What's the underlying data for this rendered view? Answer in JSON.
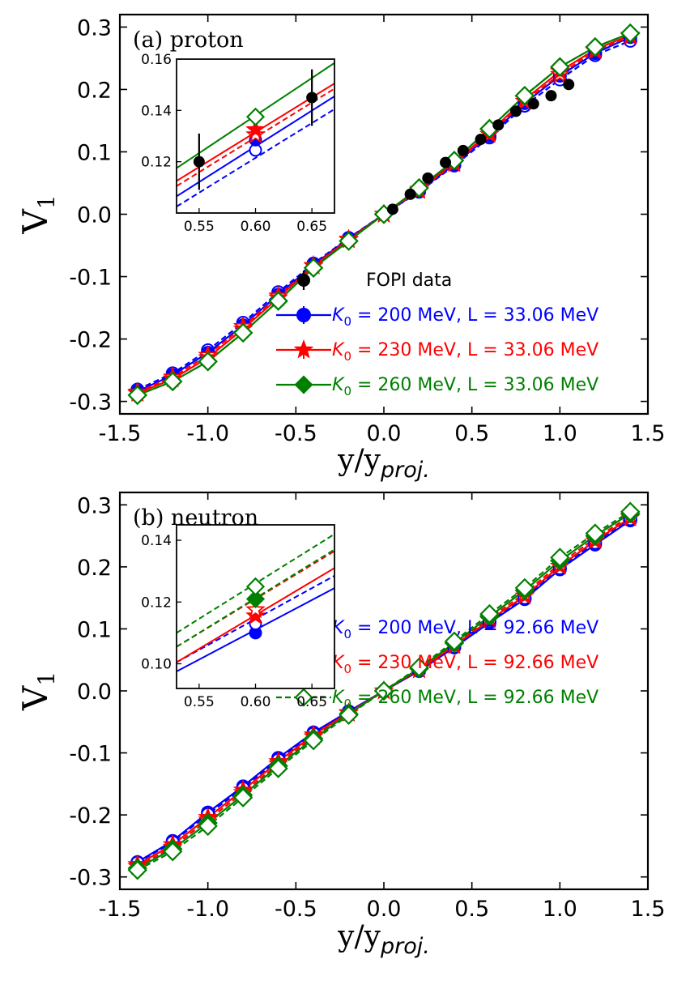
{
  "chart_data": [
    {
      "type": "line",
      "panel_label": "(a) proton",
      "xlabel": "y/y",
      "xlabel_sub": "proj.",
      "ylabel": "V",
      "ylabel_sub": "1",
      "xlim": [
        -1.5,
        1.5
      ],
      "ylim": [
        -0.32,
        0.32
      ],
      "xticks": [
        -1.5,
        -1.0,
        -0.5,
        0.0,
        0.5,
        1.0,
        1.5
      ],
      "xtick_labels": [
        "-1.5",
        "-1.0",
        "-0.5",
        "0.0",
        "0.5",
        "1.0",
        "1.5"
      ],
      "yticks": [
        -0.3,
        -0.2,
        -0.1,
        0.0,
        0.1,
        0.2,
        0.3
      ],
      "ytick_labels": [
        "-0.3",
        "-0.2",
        "-0.1",
        "0.0",
        "0.1",
        "0.2",
        "0.3"
      ],
      "x": [
        -1.4,
        -1.2,
        -1.0,
        -0.8,
        -0.6,
        -0.4,
        -0.2,
        0.0,
        0.2,
        0.4,
        0.6,
        0.8,
        1.0,
        1.2,
        1.4
      ],
      "series": [
        {
          "name": "K0=200 MeV, L=33.06 MeV (dashed)",
          "color": "#0000ff",
          "dash": true,
          "marker": "circle",
          "filled": false,
          "in_legend": false,
          "values": [
            -0.281,
            -0.255,
            -0.218,
            -0.174,
            -0.125,
            -0.079,
            -0.038,
            0.0,
            0.036,
            0.078,
            0.123,
            0.174,
            0.216,
            0.255,
            0.278
          ]
        },
        {
          "name": "K0=200 MeV, L=33.06 MeV",
          "color": "#0000ff",
          "dash": false,
          "marker": "circle",
          "filled": true,
          "in_legend": true,
          "values": [
            -0.284,
            -0.258,
            -0.222,
            -0.178,
            -0.129,
            -0.081,
            -0.039,
            0.0,
            0.037,
            0.08,
            0.126,
            0.178,
            0.222,
            0.258,
            0.284
          ]
        },
        {
          "name": "K0=230 MeV, L=33.06 MeV (dashed)",
          "color": "#ff0000",
          "dash": true,
          "marker": "star",
          "filled": false,
          "in_legend": false,
          "values": [
            -0.285,
            -0.261,
            -0.226,
            -0.18,
            -0.131,
            -0.082,
            -0.04,
            0.0,
            0.038,
            0.081,
            0.128,
            0.181,
            0.224,
            0.262,
            0.285
          ]
        },
        {
          "name": "K0=230 MeV, L=33.06 MeV",
          "color": "#ff0000",
          "dash": false,
          "marker": "star",
          "filled": true,
          "in_legend": true,
          "values": [
            -0.287,
            -0.264,
            -0.23,
            -0.184,
            -0.134,
            -0.083,
            -0.041,
            0.0,
            0.04,
            0.083,
            0.131,
            0.184,
            0.229,
            0.264,
            0.287
          ]
        },
        {
          "name": "K0=260 MeV, L=33.06 MeV",
          "color": "#008000",
          "dash": false,
          "marker": "diamond",
          "filled": true,
          "in_legend": true,
          "values": [
            -0.29,
            -0.268,
            -0.236,
            -0.19,
            -0.139,
            -0.086,
            -0.043,
            0.0,
            0.042,
            0.086,
            0.137,
            0.19,
            0.236,
            0.268,
            0.29
          ]
        },
        {
          "name": "K0=260 MeV, L=33.06 MeV (dashed)",
          "color": "#008000",
          "dash": true,
          "marker": "diamond",
          "filled": false,
          "in_legend": false,
          "values": [
            -0.29,
            -0.268,
            -0.236,
            -0.19,
            -0.139,
            -0.086,
            -0.043,
            0.0,
            0.042,
            0.086,
            0.137,
            0.19,
            0.236,
            0.268,
            0.29
          ]
        }
      ],
      "data_points": {
        "name": "FOPI data",
        "color": "#000000",
        "x": [
          0.05,
          0.15,
          0.25,
          0.35,
          0.45,
          0.55,
          0.65,
          0.75,
          0.85,
          0.95,
          1.05
        ],
        "y": [
          0.008,
          0.032,
          0.058,
          0.083,
          0.102,
          0.12,
          0.143,
          0.165,
          0.177,
          0.19,
          0.208
        ]
      },
      "legend": {
        "placement": "lower-right",
        "entries": [
          {
            "label": "FOPI data",
            "color": "#000000",
            "marker": "dot"
          },
          {
            "k0": "200 MeV",
            "L": "33.06 MeV",
            "color": "#0000ff",
            "marker": "circle",
            "filled": true,
            "dash": false
          },
          {
            "k0": "230 MeV",
            "L": "33.06 MeV",
            "color": "#ff0000",
            "marker": "star",
            "filled": true,
            "dash": false
          },
          {
            "k0": "260 MeV",
            "L": "33.06 MeV",
            "color": "#008000",
            "marker": "diamond",
            "filled": true,
            "dash": false
          }
        ]
      },
      "inset": {
        "placement": "upper-left",
        "xlim": [
          0.53,
          0.67
        ],
        "ylim": [
          0.1,
          0.16
        ],
        "xticks": [
          0.55,
          0.6,
          0.65
        ],
        "xtick_labels": [
          "0.55",
          "0.60",
          "0.65"
        ],
        "yticks": [
          0.12,
          0.14,
          0.16
        ],
        "ytick_labels": [
          "0.12",
          "0.14",
          "0.16"
        ],
        "lines": [
          {
            "color": "#0000ff",
            "dash": true,
            "x": [
              0.53,
              0.67
            ],
            "y": [
              0.1025,
              0.1405
            ]
          },
          {
            "color": "#0000ff",
            "dash": false,
            "x": [
              0.53,
              0.67
            ],
            "y": [
              0.1065,
              0.1455
            ]
          },
          {
            "color": "#ff0000",
            "dash": true,
            "x": [
              0.53,
              0.67
            ],
            "y": [
              0.1105,
              0.1485
            ]
          },
          {
            "color": "#ff0000",
            "dash": false,
            "x": [
              0.53,
              0.67
            ],
            "y": [
              0.1125,
              0.1505
            ]
          },
          {
            "color": "#008000",
            "dash": false,
            "x": [
              0.53,
              0.67
            ],
            "y": [
              0.1175,
              0.1585
            ]
          }
        ],
        "markers": [
          {
            "x": 0.6,
            "y": 0.1245,
            "color": "#0000ff",
            "marker": "circle",
            "filled": false
          },
          {
            "x": 0.6,
            "y": 0.1285,
            "color": "#0000ff",
            "marker": "circle",
            "filled": true
          },
          {
            "x": 0.6,
            "y": 0.1305,
            "color": "#ff0000",
            "marker": "star",
            "filled": false
          },
          {
            "x": 0.6,
            "y": 0.1325,
            "color": "#ff0000",
            "marker": "star",
            "filled": true
          },
          {
            "x": 0.6,
            "y": 0.1375,
            "color": "#008000",
            "marker": "diamond",
            "filled": false
          }
        ],
        "data": {
          "x": [
            0.55,
            0.65
          ],
          "y": [
            0.12,
            0.145
          ],
          "err": [
            0.011,
            0.011
          ]
        }
      }
    },
    {
      "type": "line",
      "panel_label": "(b) neutron",
      "xlabel": "y/y",
      "xlabel_sub": "proj.",
      "ylabel": "V",
      "ylabel_sub": "1",
      "xlim": [
        -1.5,
        1.5
      ],
      "ylim": [
        -0.32,
        0.32
      ],
      "xticks": [
        -1.5,
        -1.0,
        -0.5,
        0.0,
        0.5,
        1.0,
        1.5
      ],
      "xtick_labels": [
        "-1.5",
        "-1.0",
        "-0.5",
        "0.0",
        "0.5",
        "1.0",
        "1.5"
      ],
      "yticks": [
        -0.3,
        -0.2,
        -0.1,
        0.0,
        0.1,
        0.2,
        0.3
      ],
      "ytick_labels": [
        "-0.3",
        "-0.2",
        "-0.1",
        "0.0",
        "0.1",
        "0.2",
        "0.3"
      ],
      "x": [
        -1.4,
        -1.2,
        -1.0,
        -0.8,
        -0.6,
        -0.4,
        -0.2,
        0.0,
        0.2,
        0.4,
        0.6,
        0.8,
        1.0,
        1.2,
        1.4
      ],
      "series": [
        {
          "name": "K0=200 MeV, L=33.06 MeV",
          "color": "#0000ff",
          "dash": false,
          "marker": "circle",
          "filled": true,
          "in_legend": false,
          "values": [
            -0.276,
            -0.242,
            -0.196,
            -0.154,
            -0.108,
            -0.067,
            -0.033,
            0.0,
            0.032,
            0.07,
            0.11,
            0.148,
            0.196,
            0.236,
            0.275
          ]
        },
        {
          "name": "K0=200 MeV, L=92.66 MeV",
          "color": "#0000ff",
          "dash": true,
          "marker": "circle",
          "filled": false,
          "in_legend": true,
          "values": [
            -0.277,
            -0.244,
            -0.199,
            -0.157,
            -0.111,
            -0.069,
            -0.034,
            0.0,
            0.033,
            0.071,
            0.112,
            0.15,
            0.198,
            0.239,
            0.277
          ]
        },
        {
          "name": "K0=230 MeV, L=33.06 MeV",
          "color": "#ff0000",
          "dash": false,
          "marker": "star",
          "filled": true,
          "in_legend": false,
          "values": [
            -0.28,
            -0.248,
            -0.204,
            -0.16,
            -0.114,
            -0.071,
            -0.035,
            0.0,
            0.034,
            0.073,
            0.114,
            0.153,
            0.201,
            0.242,
            0.279
          ]
        },
        {
          "name": "K0=230 MeV, L=92.66 MeV",
          "color": "#ff0000",
          "dash": true,
          "marker": "star",
          "filled": false,
          "in_legend": true,
          "values": [
            -0.283,
            -0.252,
            -0.208,
            -0.164,
            -0.118,
            -0.074,
            -0.036,
            0.0,
            0.035,
            0.075,
            0.117,
            0.157,
            0.205,
            0.246,
            0.282
          ]
        },
        {
          "name": "K0=260 MeV, L=33.06 MeV",
          "color": "#008000",
          "dash": false,
          "marker": "diamond",
          "filled": true,
          "in_legend": false,
          "values": [
            -0.286,
            -0.255,
            -0.213,
            -0.168,
            -0.121,
            -0.077,
            -0.037,
            0.0,
            0.036,
            0.077,
            0.12,
            0.162,
            0.21,
            0.25,
            0.286
          ]
        },
        {
          "name": "K0=260 MeV, L=92.66 MeV",
          "color": "#008000",
          "dash": true,
          "marker": "diamond",
          "filled": false,
          "in_legend": true,
          "values": [
            -0.289,
            -0.259,
            -0.218,
            -0.172,
            -0.125,
            -0.08,
            -0.039,
            0.0,
            0.038,
            0.08,
            0.124,
            0.166,
            0.215,
            0.254,
            0.289
          ]
        }
      ],
      "legend": {
        "placement": "lower-right",
        "entries": [
          {
            "k0": "200 MeV",
            "L": "92.66 MeV",
            "color": "#0000ff",
            "marker": "circle",
            "filled": false,
            "dash": true
          },
          {
            "k0": "230 MeV",
            "L": "92.66 MeV",
            "color": "#ff0000",
            "marker": "star",
            "filled": false,
            "dash": true
          },
          {
            "k0": "260 MeV",
            "L": "92.66 MeV",
            "color": "#008000",
            "marker": "diamond",
            "filled": false,
            "dash": true
          }
        ]
      },
      "inset": {
        "placement": "upper-left",
        "xlim": [
          0.53,
          0.67
        ],
        "ylim": [
          0.092,
          0.145
        ],
        "xticks": [
          0.55,
          0.6,
          0.65
        ],
        "xtick_labels": [
          "0.55",
          "0.60",
          "0.65"
        ],
        "yticks": [
          0.1,
          0.12,
          0.14
        ],
        "ytick_labels": [
          "0.10",
          "0.12",
          "0.14"
        ],
        "lines": [
          {
            "color": "#0000ff",
            "dash": false,
            "x": [
              0.53,
              0.67
            ],
            "y": [
              0.0975,
              0.1245
            ]
          },
          {
            "color": "#0000ff",
            "dash": true,
            "x": [
              0.53,
              0.67
            ],
            "y": [
              0.1005,
              0.1285
            ]
          },
          {
            "color": "#ff0000",
            "dash": false,
            "x": [
              0.53,
              0.67
            ],
            "y": [
              0.1005,
              0.131
            ]
          },
          {
            "color": "#ff0000",
            "dash": true,
            "x": [
              0.53,
              0.67
            ],
            "y": [
              0.1055,
              0.1365
            ]
          },
          {
            "color": "#008000",
            "dash": true,
            "x": [
              0.53,
              0.67
            ],
            "y": [
              0.1055,
              0.137
            ]
          },
          {
            "color": "#008000",
            "dash": true,
            "x": [
              0.53,
              0.67
            ],
            "y": [
              0.11,
              0.142
            ]
          }
        ],
        "markers": [
          {
            "x": 0.6,
            "y": 0.11,
            "color": "#0000ff",
            "marker": "circle",
            "filled": true
          },
          {
            "x": 0.6,
            "y": 0.113,
            "color": "#0000ff",
            "marker": "circle",
            "filled": false
          },
          {
            "x": 0.6,
            "y": 0.1155,
            "color": "#ff0000",
            "marker": "star",
            "filled": true
          },
          {
            "x": 0.6,
            "y": 0.1175,
            "color": "#ff0000",
            "marker": "star",
            "filled": false
          },
          {
            "x": 0.6,
            "y": 0.121,
            "color": "#008000",
            "marker": "diamond",
            "filled": true
          },
          {
            "x": 0.6,
            "y": 0.125,
            "color": "#008000",
            "marker": "diamond",
            "filled": false
          }
        ]
      }
    }
  ]
}
